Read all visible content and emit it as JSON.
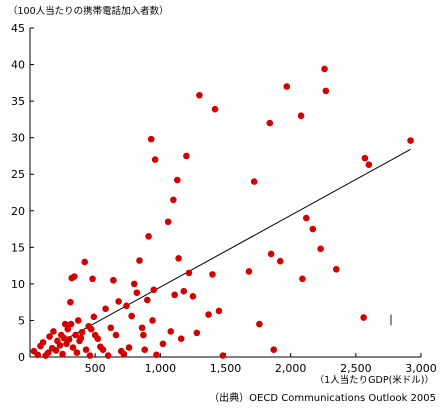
{
  "colors": {
    "point": "#d40000",
    "axis": "#000000",
    "trendline": "#000000",
    "background": "#ffffff"
  },
  "chart_data": {
    "type": "scatter",
    "title": "",
    "ylabel": "（100人当たりの携帯電話加入者数）",
    "xlabel": "（1人当たりGDP(米ドル)）",
    "source": "（出典）OECD Communications Outlook 2005",
    "xlim": [
      0,
      3000
    ],
    "ylim": [
      0,
      45
    ],
    "xticks": [
      500,
      1000,
      1500,
      2000,
      2500,
      3000
    ],
    "xtick_labels": [
      "500",
      "1,000",
      "1,500",
      "2,000",
      "2,500",
      "3,000"
    ],
    "yticks": [
      0,
      5,
      10,
      15,
      20,
      25,
      30,
      35,
      40,
      45
    ],
    "ytick_labels": [
      "0",
      "5",
      "10",
      "15",
      "20",
      "25",
      "30",
      "35",
      "40",
      "45"
    ],
    "grid": false,
    "legend": "none",
    "series": [
      {
        "points": [
          [
            30,
            0.8
          ],
          [
            60,
            0.3
          ],
          [
            80,
            1.5
          ],
          [
            100,
            2.0
          ],
          [
            120,
            0.2
          ],
          [
            140,
            0.6
          ],
          [
            150,
            2.8
          ],
          [
            170,
            1.2
          ],
          [
            180,
            3.5
          ],
          [
            200,
            0.9
          ],
          [
            210,
            2.2
          ],
          [
            230,
            1.6
          ],
          [
            240,
            3.0
          ],
          [
            250,
            0.4
          ],
          [
            260,
            2.6
          ],
          [
            270,
            4.5
          ],
          [
            280,
            1.8
          ],
          [
            290,
            3.8
          ],
          [
            300,
            2.4
          ],
          [
            310,
            7.5
          ],
          [
            315,
            4.5
          ],
          [
            320,
            10.8
          ],
          [
            330,
            1.3
          ],
          [
            340,
            11.0
          ],
          [
            350,
            3.0
          ],
          [
            360,
            0.6
          ],
          [
            370,
            5.0
          ],
          [
            380,
            2.2
          ],
          [
            390,
            2.6
          ],
          [
            400,
            3.4
          ],
          [
            420,
            13.0
          ],
          [
            430,
            1.0
          ],
          [
            450,
            4.2
          ],
          [
            460,
            0.2
          ],
          [
            470,
            3.8
          ],
          [
            480,
            10.7
          ],
          [
            490,
            5.5
          ],
          [
            500,
            3.0
          ],
          [
            520,
            2.5
          ],
          [
            540,
            1.4
          ],
          [
            560,
            1.0
          ],
          [
            580,
            6.6
          ],
          [
            600,
            0.2
          ],
          [
            620,
            4.0
          ],
          [
            640,
            10.5
          ],
          [
            660,
            3.0
          ],
          [
            680,
            7.6
          ],
          [
            700,
            0.8
          ],
          [
            720,
            0.4
          ],
          [
            740,
            7.0
          ],
          [
            760,
            1.3
          ],
          [
            780,
            5.6
          ],
          [
            800,
            10.0
          ],
          [
            820,
            8.8
          ],
          [
            840,
            13.2
          ],
          [
            860,
            4.0
          ],
          [
            870,
            3.0
          ],
          [
            880,
            1.0
          ],
          [
            900,
            7.8
          ],
          [
            910,
            16.5
          ],
          [
            930,
            29.8
          ],
          [
            940,
            5.0
          ],
          [
            950,
            9.2
          ],
          [
            960,
            27.0
          ],
          [
            970,
            0.3
          ],
          [
            1020,
            1.8
          ],
          [
            1060,
            18.5
          ],
          [
            1080,
            3.5
          ],
          [
            1100,
            21.5
          ],
          [
            1110,
            8.5
          ],
          [
            1130,
            24.2
          ],
          [
            1140,
            13.5
          ],
          [
            1160,
            2.5
          ],
          [
            1180,
            9.0
          ],
          [
            1200,
            27.5
          ],
          [
            1220,
            11.5
          ],
          [
            1250,
            8.3
          ],
          [
            1280,
            3.3
          ],
          [
            1300,
            35.8
          ],
          [
            1370,
            5.8
          ],
          [
            1400,
            11.3
          ],
          [
            1420,
            33.9
          ],
          [
            1450,
            6.3
          ],
          [
            1480,
            0.2
          ],
          [
            1680,
            11.7
          ],
          [
            1720,
            24.0
          ],
          [
            1760,
            4.5
          ],
          [
            1840,
            32.0
          ],
          [
            1850,
            14.1
          ],
          [
            1870,
            1.0
          ],
          [
            1920,
            13.1
          ],
          [
            1970,
            37.0
          ],
          [
            2080,
            33.0
          ],
          [
            2090,
            10.7
          ],
          [
            2120,
            19.0
          ],
          [
            2170,
            17.5
          ],
          [
            2230,
            14.8
          ],
          [
            2260,
            39.4
          ],
          [
            2270,
            36.4
          ],
          [
            2350,
            12.0
          ],
          [
            2560,
            5.4
          ],
          [
            2570,
            27.2
          ],
          [
            2600,
            26.3
          ],
          [
            2920,
            29.6
          ]
        ]
      }
    ],
    "trendline": {
      "x": [
        250,
        2920
      ],
      "y": [
        2.2,
        28.4
      ]
    },
    "annotations": [
      {
        "text": "|",
        "x": 2770,
        "y": 5.3
      }
    ]
  }
}
